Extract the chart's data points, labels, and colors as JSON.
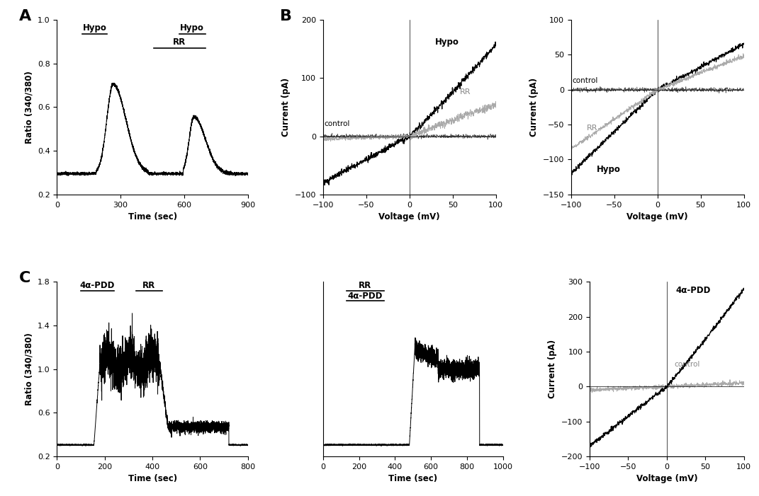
{
  "fig_width": 10.71,
  "fig_height": 7.01,
  "bg_color": "#ffffff",
  "panel_A": {
    "label": "A",
    "xlabel": "Time (sec)",
    "ylabel": "Ratio (340/380)",
    "xlim": [
      0,
      900
    ],
    "ylim": [
      0.2,
      1.0
    ],
    "yticks": [
      0.2,
      0.4,
      0.6,
      0.8,
      1.0
    ],
    "xticks": [
      0,
      300,
      600,
      900
    ]
  },
  "panel_B1": {
    "label": "B",
    "xlabel": "Voltage (mV)",
    "ylabel": "Current (pA)",
    "xlim": [
      -100,
      100
    ],
    "ylim": [
      -100,
      200
    ],
    "yticks": [
      -100,
      0,
      100,
      200
    ],
    "xticks": [
      -100,
      -50,
      0,
      50,
      100
    ]
  },
  "panel_B2": {
    "xlabel": "Voltage (mV)",
    "ylabel": "Current (pA)",
    "xlim": [
      -100,
      100
    ],
    "ylim": [
      -150,
      100
    ],
    "yticks": [
      -150,
      -100,
      -50,
      0,
      50,
      100
    ],
    "xticks": [
      -100,
      -50,
      0,
      50,
      100
    ]
  },
  "panel_C1": {
    "label": "C",
    "xlabel": "Time (sec)",
    "ylabel": "Ratio (340/380)",
    "xlim": [
      0,
      800
    ],
    "ylim": [
      0.2,
      1.8
    ],
    "yticks": [
      0.2,
      0.6,
      1.0,
      1.4,
      1.8
    ],
    "xticks": [
      0,
      200,
      400,
      600,
      800
    ]
  },
  "panel_C2": {
    "xlabel": "Time (sec)",
    "xlim": [
      0,
      1000
    ],
    "ylim": [
      0.2,
      1.8
    ],
    "yticks": [
      0.2,
      0.6,
      1.0,
      1.4,
      1.8
    ],
    "xticks": [
      0,
      200,
      400,
      600,
      800,
      1000
    ]
  },
  "panel_C3": {
    "xlabel": "Voltage (mV)",
    "ylabel": "Current (pA)",
    "xlim": [
      -100,
      100
    ],
    "ylim": [
      -200,
      300
    ],
    "yticks": [
      -200,
      -100,
      0,
      100,
      200,
      300
    ],
    "xticks": [
      -100,
      -50,
      0,
      50,
      100
    ]
  }
}
